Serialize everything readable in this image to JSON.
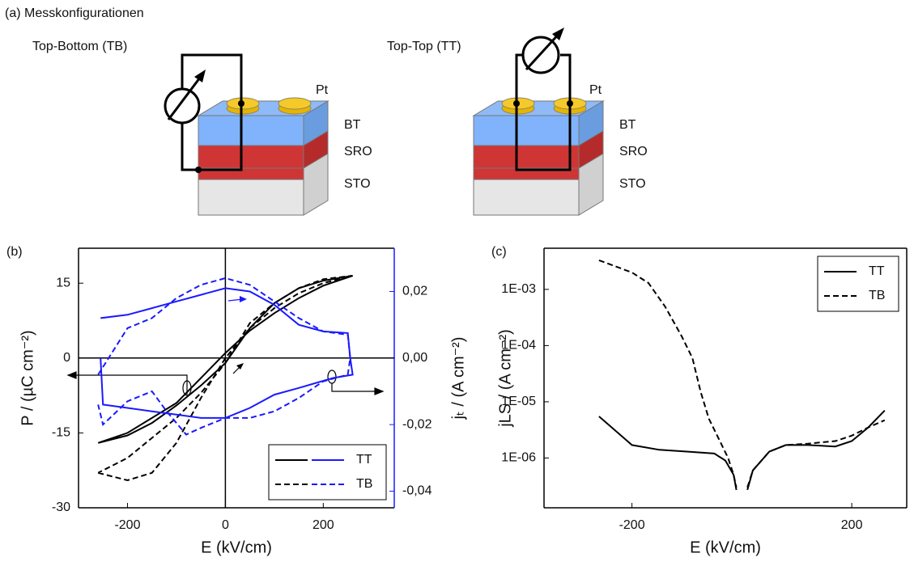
{
  "panel_a": {
    "title": "(a) Messkonfigurationen",
    "configs": [
      {
        "name": "Top-Bottom (TB)",
        "labels": [
          "Pt",
          "BT",
          "SRO",
          "STO"
        ]
      },
      {
        "name": "Top-Top (TT)",
        "labels": [
          "Pt",
          "BT",
          "SRO",
          "STO"
        ]
      }
    ]
  },
  "chart_data": [
    {
      "type": "line",
      "panel_label": "(b)",
      "xlabel": "E (kV/cm)",
      "ylabel": "P / (µC cm⁻²)",
      "y2label": "jₜ / (A cm⁻²)",
      "xlim": [
        -300,
        345
      ],
      "xticks": [
        -200,
        0,
        200
      ],
      "ylim": [
        -30,
        22
      ],
      "yticks": [
        -30,
        -15,
        0,
        15
      ],
      "y2lim": [
        -0.045,
        0.033
      ],
      "y2ticks": [
        {
          "value": -0.04,
          "label": "-0,04"
        },
        {
          "value": -0.02,
          "label": "-0,02"
        },
        {
          "value": 0,
          "label": "0,00"
        },
        {
          "value": 0.02,
          "label": "0,02"
        }
      ],
      "y2color": "#1a1aff",
      "zero_lines": true,
      "legend": "lower right",
      "series": [
        {
          "name": "TT",
          "color": "#000000",
          "line_style": "solid",
          "x": [
            -260,
            -200,
            -100,
            -50,
            0,
            50,
            100,
            150,
            200,
            260,
            200,
            150,
            100,
            50,
            0,
            -50,
            -100,
            -150,
            -200,
            -260
          ],
          "values": [
            -17,
            -15,
            -9,
            -4,
            1,
            5.5,
            9,
            12,
            14.5,
            16.5,
            15.5,
            14,
            11,
            6,
            -1,
            -5.5,
            -9.5,
            -13,
            -15.5,
            -17
          ]
        },
        {
          "name": "TB",
          "color": "#000000",
          "line_style": "dashed",
          "x": [
            -260,
            -200,
            -150,
            -100,
            -50,
            0,
            50,
            100,
            150,
            200,
            260,
            200,
            150,
            100,
            50,
            0,
            -50,
            -100,
            -150,
            -200,
            -260
          ],
          "values": [
            -23,
            -24.5,
            -23,
            -17,
            -8,
            0,
            6,
            10,
            13,
            15,
            16.5,
            15.8,
            14,
            11,
            7,
            -1,
            -7,
            -12,
            -16,
            -20,
            -23
          ]
        },
        {
          "name": "TT",
          "color": "#1a1aff",
          "line_style": "solid",
          "axis": "y2",
          "x": [
            -255,
            -200,
            -150,
            -100,
            -50,
            0,
            50,
            100,
            150,
            200,
            250,
            255,
            260,
            220,
            150,
            100,
            50,
            0,
            -50,
            -100,
            -150,
            -200,
            -250,
            -255
          ],
          "values": [
            0.012,
            0.013,
            0.015,
            0.017,
            0.019,
            0.021,
            0.02,
            0.016,
            0.01,
            0.008,
            0.0075,
            0,
            -0.005,
            -0.006,
            -0.009,
            -0.011,
            -0.015,
            -0.018,
            -0.018,
            -0.017,
            -0.016,
            -0.015,
            -0.014,
            0
          ]
        },
        {
          "name": "TB",
          "color": "#1a1aff",
          "line_style": "dashed",
          "axis": "y2",
          "x": [
            -260,
            -200,
            -150,
            -100,
            -50,
            0,
            50,
            100,
            150,
            200,
            250,
            255,
            250,
            200,
            150,
            100,
            50,
            0,
            -50,
            -80,
            -120,
            -150,
            -200,
            -250,
            -260
          ],
          "values": [
            -0.005,
            0.009,
            0.012,
            0.018,
            0.022,
            0.024,
            0.022,
            0.017,
            0.012,
            0.008,
            0.007,
            0,
            -0.005,
            -0.007,
            -0.012,
            -0.016,
            -0.018,
            -0.018,
            -0.021,
            -0.023,
            -0.016,
            -0.01,
            -0.013,
            -0.02,
            -0.014
          ]
        }
      ]
    },
    {
      "type": "line",
      "panel_label": "(c)",
      "xlabel": "E (kV/cm)",
      "ylabel": "jLS / (A cm⁻²)",
      "xlim": [
        -360,
        300
      ],
      "xticks": [
        -200,
        200
      ],
      "log_y": true,
      "ylim": [
        1.3e-07,
        0.0054
      ],
      "yticks": [
        {
          "value": 1e-06,
          "label": "1E-06"
        },
        {
          "value": 1e-05,
          "label": "1E-05"
        },
        {
          "value": 0.0001,
          "label": "1E-04"
        },
        {
          "value": 0.001,
          "label": "1E-03"
        }
      ],
      "legend": "upper right",
      "series": [
        {
          "name": "TT",
          "color": "#000000",
          "line_style": "solid",
          "x": [
            -260,
            -200,
            -150,
            -100,
            -50,
            -30,
            -15,
            -10,
            null,
            10,
            20,
            50,
            80,
            120,
            170,
            200,
            230,
            260
          ],
          "values": [
            5.5e-06,
            1.7e-06,
            1.4e-06,
            1.3e-06,
            1.2e-06,
            9e-07,
            5e-07,
            2.7e-07,
            null,
            2.7e-07,
            6e-07,
            1.3e-06,
            1.7e-06,
            1.7e-06,
            1.6e-06,
            2e-06,
            3.5e-06,
            7e-06
          ]
        },
        {
          "name": "TB",
          "color": "#000000",
          "line_style": "dashed",
          "x": [
            -260,
            -200,
            -170,
            -140,
            -110,
            -90,
            -75,
            -60,
            -40,
            -25,
            -15,
            -10,
            null,
            10,
            20,
            50,
            80,
            120,
            170,
            200,
            230,
            260
          ],
          "values": [
            0.0033,
            0.002,
            0.0013,
            0.0005,
            0.00015,
            6e-05,
            1.5e-05,
            5e-06,
            2e-06,
            1e-06,
            5e-07,
            3e-07,
            null,
            3e-07,
            6e-07,
            1.3e-06,
            1.7e-06,
            1.8e-06,
            2e-06,
            2.5e-06,
            3.5e-06,
            4.7e-06
          ]
        }
      ]
    }
  ]
}
